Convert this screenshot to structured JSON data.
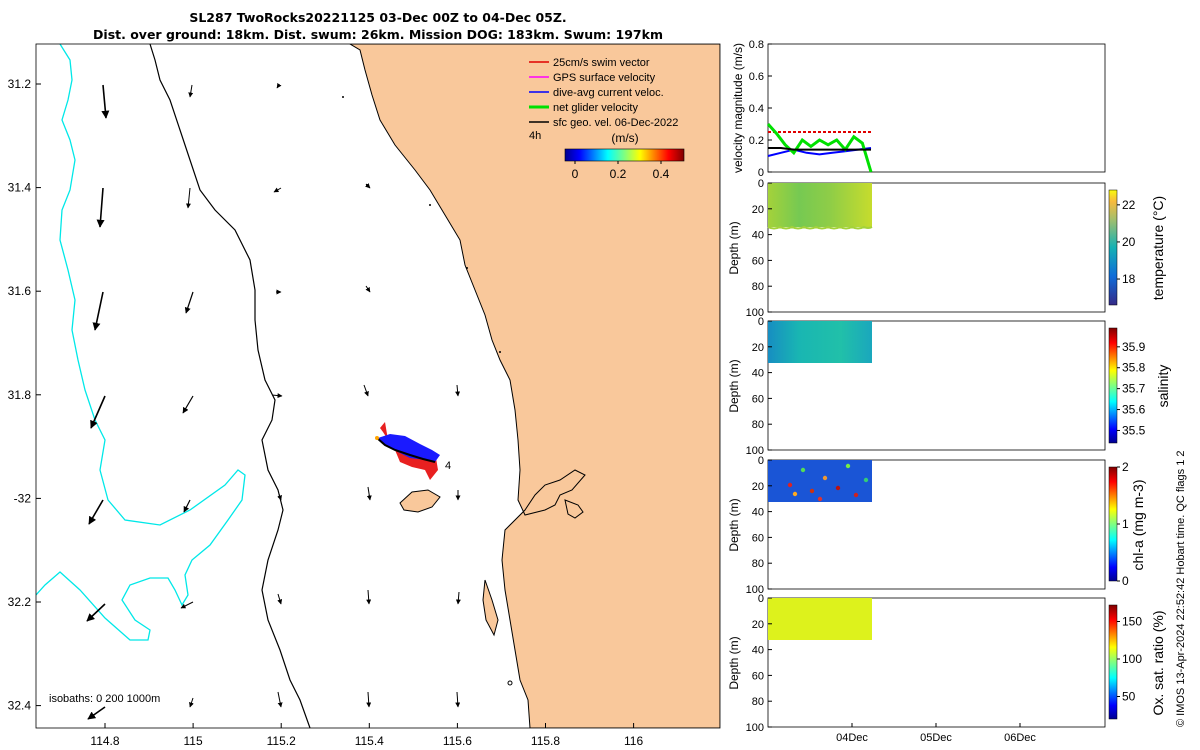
{
  "title": {
    "line1": "SL287 TwoRocks20221125 03-Dec 00Z to 04-Dec 05Z.",
    "line2": "Dist. over ground: 18km. Dist. swum: 26km. Mission DOG: 183km. Swum: 197km"
  },
  "map": {
    "lat_ticks": [
      "31.2",
      "31.4",
      "31.6",
      "31.8",
      "-32",
      "32.2",
      "32.4"
    ],
    "lon_ticks": [
      "114.8",
      "115",
      "115.2",
      "115.4",
      "115.6",
      "115.8",
      "116"
    ],
    "xlim": [
      114.63,
      116.2
    ],
    "ylim": [
      -32.45,
      -31.08
    ],
    "legend": [
      {
        "label": "25cm/s swim vector",
        "color": "#e00000"
      },
      {
        "label": "GPS surface velocity",
        "color": "#ff00ff"
      },
      {
        "label": "dive-avg current veloc.",
        "color": "#0000ff"
      },
      {
        "label": "net glider velocity",
        "color": "#00e000"
      },
      {
        "label": "sfc geo. vel. 06-Dec-2022",
        "color": "#000000"
      }
    ],
    "time_label": "4h",
    "colorbar": {
      "unit": "(m/s)",
      "ticks": [
        "0",
        "0.2",
        "0.4"
      ]
    },
    "track_label": "4",
    "isobaths_label": "isobaths: 0   200  1000m",
    "colors": {
      "land": "#f9c89b",
      "isobath200": "#00e8e8",
      "coast": "#000000"
    }
  },
  "chart_data": [
    {
      "type": "line",
      "ylabel": "velocity magnitude (m/s)",
      "ylim": [
        0,
        0.8
      ],
      "yticks": [
        "0",
        "0.2",
        "0.4",
        "0.6",
        "0.8"
      ],
      "series": [
        {
          "name": "25cm/s swim vector",
          "color": "#e00000",
          "values": [
            0.25,
            0.25,
            0.25,
            0.25,
            0.25,
            0.25,
            0.25,
            0.25,
            0.25
          ]
        },
        {
          "name": "dive-avg current veloc.",
          "color": "#0000ff",
          "values": [
            0.1,
            0.12,
            0.14,
            0.12,
            0.11,
            0.12,
            0.13,
            0.14,
            0.15
          ]
        },
        {
          "name": "net glider velocity",
          "color": "#00e000",
          "values": [
            0.3,
            0.24,
            0.17,
            0.12,
            0.2,
            0.16,
            0.2,
            0.17,
            0.2,
            0.14,
            0.22,
            0.18,
            0.0
          ]
        },
        {
          "name": "sfc geo. vel.",
          "color": "#000000",
          "values": [
            0.15,
            0.15,
            0.14,
            0.14,
            0.14,
            0.14,
            0.14,
            0.14,
            0.14
          ]
        }
      ]
    },
    {
      "type": "heatmap",
      "ylabel": "Depth (m)",
      "yticks": [
        "0",
        "20",
        "40",
        "60",
        "80",
        "100"
      ],
      "colorbar_label": "temperature (°C)",
      "cb_ticks": [
        "18",
        "20",
        "22"
      ]
    },
    {
      "type": "heatmap",
      "ylabel": "Depth (m)",
      "yticks": [
        "0",
        "20",
        "40",
        "60",
        "80",
        "100"
      ],
      "colorbar_label": "salinity",
      "cb_ticks": [
        "35.5",
        "35.6",
        "35.7",
        "35.8",
        "35.9"
      ]
    },
    {
      "type": "heatmap",
      "ylabel": "Depth (m)",
      "yticks": [
        "0",
        "20",
        "40",
        "60",
        "80",
        "100"
      ],
      "colorbar_label": "chl-a (mg m-3)",
      "cb_ticks": [
        "0",
        "1",
        "2"
      ]
    },
    {
      "type": "heatmap",
      "ylabel": "Depth (m)",
      "yticks": [
        "0",
        "20",
        "40",
        "60",
        "80",
        "100"
      ],
      "colorbar_label": "Ox. sat. ratio (%)",
      "cb_ticks": [
        "50",
        "100",
        "150"
      ]
    }
  ],
  "time_axis": {
    "ticks": [
      "04Dec",
      "05Dec",
      "06Dec"
    ]
  },
  "footer": "© IMOS 13-Apr-2024 22:52:42 Hobart time. QC flags 1  2"
}
